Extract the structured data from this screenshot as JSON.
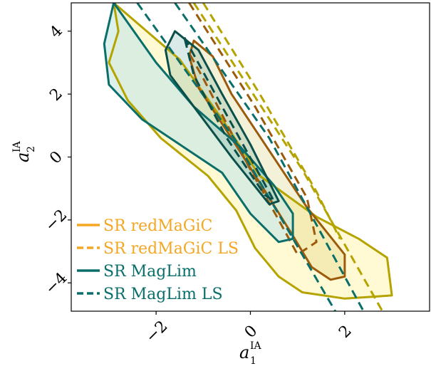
{
  "chart_data": {
    "type": "contour",
    "xlabel": "a",
    "xlabel_sub": "1",
    "xlabel_sup": "IA",
    "ylabel": "a",
    "ylabel_sub": "2",
    "ylabel_sup": "IA",
    "xlim": [
      -3.8,
      3.8
    ],
    "ylim": [
      -4.9,
      4.9
    ],
    "xticks": [
      -2,
      0,
      2
    ],
    "xtick_labels": [
      "−2",
      "0",
      "2"
    ],
    "yticks": [
      -4,
      -2,
      0,
      2,
      4
    ],
    "ytick_labels": [
      "−4",
      "−2",
      "0",
      "2",
      "4"
    ],
    "grid": false,
    "legend_position": "bottom-left",
    "series": [
      {
        "name": "SR redMaGiC",
        "color": "#f5a623",
        "line_color": "#b5a300",
        "fill": "#fff7c2",
        "style": "solid",
        "contours": {
          "outer": [
            [
              -2.9,
              4.9
            ],
            [
              -1.5,
              3.1
            ],
            [
              -0.6,
              1.2
            ],
            [
              0.2,
              -0.6
            ],
            [
              1.4,
              -1.9
            ],
            [
              2.3,
              -2.6
            ],
            [
              2.9,
              -3.2
            ],
            [
              3.0,
              -4.4
            ],
            [
              2.0,
              -4.5
            ],
            [
              1.1,
              -4.3
            ],
            [
              0.6,
              -3.8
            ],
            [
              0.1,
              -2.9
            ],
            [
              -0.3,
              -1.7
            ],
            [
              -0.9,
              -0.6
            ],
            [
              -1.9,
              0.6
            ],
            [
              -2.6,
              1.8
            ],
            [
              -3.0,
              3.0
            ],
            [
              -2.8,
              4.0
            ],
            [
              -2.9,
              4.9
            ]
          ],
          "inner": [
            [
              -1.2,
              3.7
            ],
            [
              -0.8,
              3.2
            ],
            [
              -0.4,
              2.0
            ],
            [
              0.4,
              0.2
            ],
            [
              1.2,
              -1.6
            ],
            [
              2.0,
              -3.1
            ],
            [
              2.0,
              -3.8
            ],
            [
              1.7,
              -3.9
            ],
            [
              1.3,
              -3.5
            ],
            [
              0.9,
              -2.5
            ],
            [
              0.4,
              -1.3
            ],
            [
              -0.4,
              0.6
            ],
            [
              -1.1,
              2.2
            ],
            [
              -1.3,
              3.2
            ],
            [
              -1.2,
              3.7
            ]
          ]
        }
      },
      {
        "name": "SR redMaGiC LS",
        "color": "#f5a623",
        "line_color": "#b5a300",
        "style": "dashed",
        "contours": {
          "outer": [
            [
              -1.2,
              4.9
            ],
            [
              1.1,
              -0.4
            ],
            [
              2.8,
              -4.9
            ]
          ],
          "outer_b": [
            [
              -1.0,
              4.9
            ],
            [
              0.2,
              2.0
            ],
            [
              1.4,
              -1.1
            ],
            [
              1.9,
              -2.6
            ]
          ],
          "inner": [
            [
              -1.3,
              4.9
            ],
            [
              0.1,
              1.6
            ],
            [
              1.2,
              -1.3
            ],
            [
              1.4,
              -2.7
            ],
            [
              1.0,
              -3.1
            ],
            [
              0.6,
              -2.0
            ],
            [
              0.0,
              -0.4
            ],
            [
              -1.0,
              2.5
            ],
            [
              -1.3,
              3.3
            ]
          ]
        }
      },
      {
        "name": "SR MagLim",
        "color": "#0a6f6a",
        "line_color": "#0a6f6a",
        "fill": "#cde9e4",
        "style": "solid",
        "contours": {
          "outer": [
            [
              -2.9,
              4.9
            ],
            [
              -2.0,
              3.0
            ],
            [
              -1.2,
              1.6
            ],
            [
              -0.2,
              0.3
            ],
            [
              0.5,
              -0.9
            ],
            [
              0.9,
              -1.8
            ],
            [
              0.9,
              -2.6
            ],
            [
              0.6,
              -2.7
            ],
            [
              0.0,
              -1.8
            ],
            [
              -0.6,
              -0.5
            ],
            [
              -1.4,
              0.3
            ],
            [
              -2.3,
              1.2
            ],
            [
              -3.0,
              2.3
            ],
            [
              -3.1,
              3.6
            ],
            [
              -2.9,
              4.9
            ]
          ],
          "inner": [
            [
              -1.6,
              4.0
            ],
            [
              -1.1,
              3.4
            ],
            [
              -0.6,
              2.0
            ],
            [
              0.0,
              0.4
            ],
            [
              0.6,
              -1.4
            ],
            [
              0.4,
              -1.5
            ],
            [
              -0.4,
              0.0
            ],
            [
              -1.2,
              1.6
            ],
            [
              -1.7,
              2.6
            ],
            [
              -1.8,
              3.4
            ],
            [
              -1.6,
              4.0
            ]
          ]
        }
      },
      {
        "name": "SR MagLim LS",
        "color": "#0a6f6a",
        "line_color": "#0a6f6a",
        "style": "dashed",
        "contours": {
          "outer": [
            [
              -2.4,
              4.9
            ],
            [
              -0.3,
              0.5
            ],
            [
              1.8,
              -4.9
            ]
          ],
          "outer_b": [
            [
              -1.6,
              4.9
            ],
            [
              0.4,
              0.6
            ],
            [
              2.4,
              -4.9
            ]
          ],
          "inner": [
            [
              -1.4,
              3.8
            ],
            [
              -0.6,
              1.6
            ],
            [
              0.1,
              -0.3
            ],
            [
              0.5,
              -1.4
            ],
            [
              0.3,
              -1.2
            ],
            [
              -0.5,
              0.6
            ],
            [
              -1.2,
              2.6
            ],
            [
              -1.4,
              3.8
            ]
          ]
        }
      }
    ]
  }
}
